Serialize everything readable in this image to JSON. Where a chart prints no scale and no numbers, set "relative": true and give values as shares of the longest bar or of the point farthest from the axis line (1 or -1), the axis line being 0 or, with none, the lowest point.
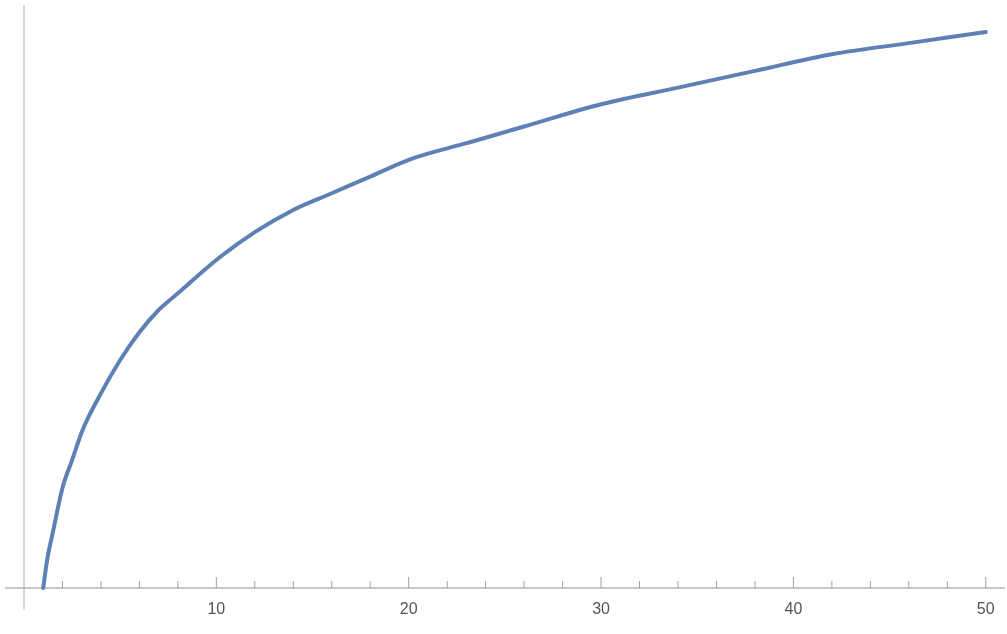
{
  "chart_data": {
    "type": "line",
    "relative": true,
    "tick_labels": "x",
    "x": [
      1,
      1.2,
      1.5,
      2,
      2.5,
      3,
      4,
      5,
      6,
      7,
      8,
      10,
      12,
      14,
      16,
      18,
      20,
      23,
      26,
      30,
      34,
      38,
      42,
      46,
      50
    ],
    "series": [
      {
        "color": "#5e81b5",
        "values": [
          0,
          0.05,
          0.1,
          0.18,
          0.23,
          0.28,
          0.35,
          0.41,
          0.46,
          0.5,
          0.53,
          0.59,
          0.64,
          0.68,
          0.71,
          0.74,
          0.77,
          0.8,
          0.83,
          0.87,
          0.9,
          0.93,
          0.96,
          0.98,
          1
        ]
      }
    ],
    "xlim": [
      0,
      51
    ],
    "xticks": [
      {
        "value": 2,
        "label": null
      },
      {
        "value": 4,
        "label": null
      },
      {
        "value": 6,
        "label": null
      },
      {
        "value": 8,
        "label": null
      },
      10,
      {
        "value": 12,
        "label": null
      },
      {
        "value": 14,
        "label": null
      },
      {
        "value": 16,
        "label": null
      },
      {
        "value": 18,
        "label": null
      },
      20,
      {
        "value": 22,
        "label": null
      },
      {
        "value": 24,
        "label": null
      },
      {
        "value": 26,
        "label": null
      },
      {
        "value": 28,
        "label": null
      },
      30,
      {
        "value": 32,
        "label": null
      },
      {
        "value": 34,
        "label": null
      },
      {
        "value": 36,
        "label": null
      },
      {
        "value": 38,
        "label": null
      },
      40,
      {
        "value": 42,
        "label": null
      },
      {
        "value": 44,
        "label": null
      },
      {
        "value": 46,
        "label": null
      },
      {
        "value": 48,
        "label": null
      },
      50
    ],
    "marker": "none",
    "line_style": "solid"
  }
}
